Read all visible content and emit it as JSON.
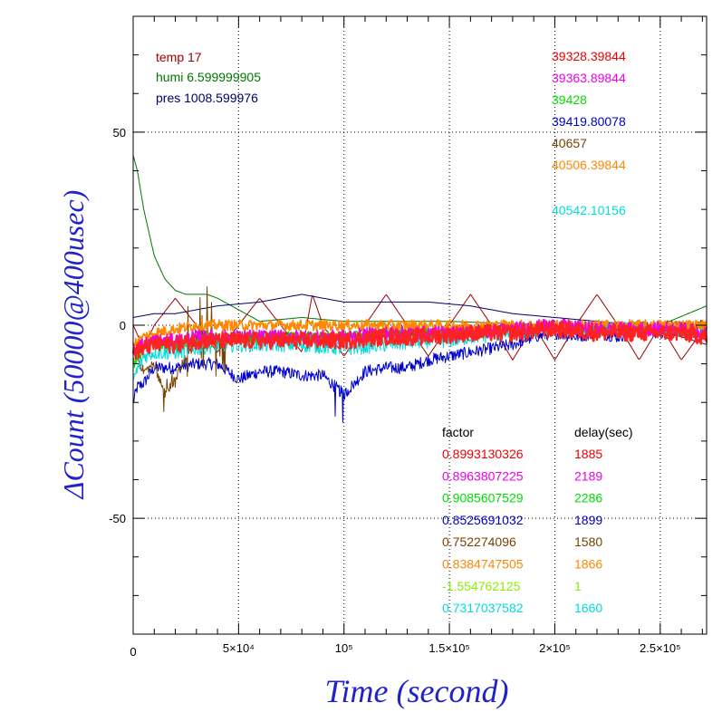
{
  "chart_data": {
    "type": "line",
    "title": "",
    "xlabel": "Time (second)",
    "ylabel": "ΔCount (50000@400usec)",
    "xlim": [
      0,
      272000
    ],
    "ylim": [
      -80,
      80
    ],
    "grid": true,
    "x_ticks": [
      {
        "value": 0,
        "label": "0"
      },
      {
        "value": 50000,
        "label": "5×10⁴"
      },
      {
        "value": 100000,
        "label": "10⁵"
      },
      {
        "value": 150000,
        "label": "1.5×10⁵"
      },
      {
        "value": 200000,
        "label": "2×10⁵"
      },
      {
        "value": 250000,
        "label": "2.5×10⁵"
      }
    ],
    "y_ticks": [
      {
        "value": 50,
        "label": "50"
      },
      {
        "value": 0,
        "label": "0"
      },
      {
        "value": -50,
        "label": "-50"
      }
    ],
    "env_labels": [
      {
        "text": "temp 17",
        "color": "#990000"
      },
      {
        "text": "humi 6.599999905",
        "color": "#007700"
      },
      {
        "text": "pres 1008.599976",
        "color": "#000066"
      }
    ],
    "count_labels": [
      {
        "text": "39328.39844",
        "color": "#ee0000"
      },
      {
        "text": "39363.89844",
        "color": "#ee00ee"
      },
      {
        "text": "39428",
        "color": "#00dd00"
      },
      {
        "text": "39419.80078",
        "color": "#0000cc"
      },
      {
        "text": "40657",
        "color": "#774400"
      },
      {
        "text": "40506.39844",
        "color": "#ff8800"
      },
      {
        "text": "40542.10156",
        "color": "#00dddd"
      }
    ],
    "factor_header": "factor",
    "delay_header": "delay(sec)",
    "factors": [
      {
        "factor": "0.8993130326",
        "delay": "1885",
        "color": "#ee0000"
      },
      {
        "factor": "0.8963807225",
        "delay": "2189",
        "color": "#ee00ee"
      },
      {
        "factor": "0.9085607529",
        "delay": "2286",
        "color": "#00dd00"
      },
      {
        "factor": "0.8525691032",
        "delay": "1899",
        "color": "#0000cc"
      },
      {
        "factor": "0.752274096",
        "delay": "1580",
        "color": "#774400"
      },
      {
        "factor": "0.8384747505",
        "delay": "1866",
        "color": "#ff8800"
      },
      {
        "factor": "-1.554762125",
        "delay": "1",
        "color": "#88ee00"
      },
      {
        "factor": "0.7317037582",
        "delay": "1660",
        "color": "#00dddd"
      }
    ],
    "series": [
      {
        "color": "#990000",
        "kind": "temp",
        "x": [
          0,
          5000,
          10000,
          20000,
          30000,
          40000,
          50000,
          60000,
          70000,
          80000,
          85000,
          90000,
          100000,
          110000,
          120000,
          130000,
          140000,
          150000,
          160000,
          170000,
          180000,
          190000,
          200000,
          210000,
          220000,
          230000,
          240000,
          250000,
          260000,
          272000
        ],
        "y": [
          0,
          -6,
          0,
          7,
          0,
          -7,
          0,
          7,
          0,
          -7,
          8,
          0,
          -8,
          0,
          8,
          0,
          -8,
          0,
          8,
          0,
          -9,
          0,
          -9,
          0,
          8,
          0,
          -9,
          0,
          -9,
          0
        ]
      },
      {
        "color": "#007700",
        "kind": "humi",
        "x": [
          0,
          2000,
          5000,
          10000,
          15000,
          20000,
          25000,
          30000,
          35000,
          40000,
          50000,
          60000,
          80000,
          100000,
          150000,
          200000,
          250000,
          272000
        ],
        "y": [
          44,
          40,
          30,
          18,
          12,
          9,
          8,
          8,
          8,
          7,
          4,
          1,
          2,
          1,
          1,
          0,
          0,
          5
        ]
      },
      {
        "color": "#000066",
        "kind": "pres",
        "x": [
          0,
          10000,
          20000,
          30000,
          40000,
          60000,
          80000,
          90000,
          100000,
          120000,
          140000,
          160000,
          180000,
          200000,
          220000,
          240000,
          260000,
          272000
        ],
        "y": [
          2,
          3,
          3,
          4,
          5,
          6,
          8,
          7,
          6,
          6,
          6,
          5,
          3,
          2,
          1,
          0,
          -3,
          -5
        ]
      },
      {
        "color": "#0000cc",
        "kind": "ch4",
        "x": [
          0,
          2000,
          5000,
          10000,
          20000,
          30000,
          40000,
          50000,
          60000,
          70000,
          80000,
          90000,
          100000,
          110000,
          120000,
          130000,
          140000,
          150000,
          160000,
          170000,
          180000,
          190000,
          200000,
          210000,
          220000,
          230000,
          240000,
          250000,
          260000,
          272000
        ],
        "y": [
          -20,
          -16,
          -15,
          -11,
          -11,
          -10,
          -10,
          -14,
          -12,
          -12,
          -13,
          -13,
          -18,
          -12,
          -11,
          -11,
          -9,
          -8,
          -7,
          -6,
          -5,
          -3,
          -2,
          -3,
          -2,
          -3,
          -1,
          -2,
          -1,
          0
        ]
      },
      {
        "color": "#774400",
        "kind": "ch5",
        "x": [
          0,
          5000,
          10000,
          15000,
          20000,
          25000,
          30000,
          35000,
          40000,
          50000,
          60000,
          80000,
          100000,
          150000,
          200000,
          250000,
          272000
        ],
        "y": [
          -6,
          -12,
          -10,
          -18,
          -14,
          -8,
          -5,
          -2,
          -4,
          -3,
          -3,
          -3,
          -3,
          -2,
          -1,
          0,
          0
        ]
      },
      {
        "color": "#00dddd",
        "kind": "ch8",
        "x": [
          0,
          5000,
          10000,
          20000,
          30000,
          40000,
          50000,
          60000,
          80000,
          100000,
          120000,
          140000,
          150000,
          160000,
          180000,
          200000,
          220000,
          240000,
          260000,
          272000
        ],
        "y": [
          -14,
          -8,
          -7,
          -7,
          -6,
          -5,
          -5,
          -5,
          -5,
          -6,
          -5,
          -4,
          -4,
          -3,
          -2,
          -1,
          -1,
          -1,
          -1,
          -2
        ]
      },
      {
        "color": "#00dd00",
        "kind": "ch3",
        "x": [
          0,
          5000,
          10000,
          20000,
          30000,
          40000,
          50000,
          60000,
          80000,
          100000,
          120000,
          140000,
          160000,
          180000,
          200000,
          220000,
          240000,
          260000,
          272000
        ],
        "y": [
          -10,
          -6,
          -5,
          -5,
          -4,
          -4,
          -3,
          -3,
          -3,
          -3,
          -2,
          -2,
          -2,
          -1,
          -1,
          -1,
          -1,
          -1,
          -1
        ]
      },
      {
        "color": "#ff8800",
        "kind": "ch6",
        "x": [
          0,
          5000,
          10000,
          20000,
          30000,
          40000,
          50000,
          60000,
          80000,
          100000,
          120000,
          140000,
          160000,
          180000,
          200000,
          220000,
          240000,
          260000,
          272000
        ],
        "y": [
          -5,
          -3,
          -2,
          -1,
          0,
          0,
          0,
          0,
          0,
          0,
          0,
          0,
          0,
          0,
          0,
          0,
          0,
          0,
          0
        ]
      },
      {
        "color": "#ee00ee",
        "kind": "ch2",
        "x": [
          0,
          5000,
          10000,
          20000,
          30000,
          40000,
          50000,
          60000,
          80000,
          100000,
          120000,
          140000,
          160000,
          180000,
          200000,
          220000,
          240000,
          260000,
          272000
        ],
        "y": [
          -6,
          -5,
          -4,
          -4,
          -3,
          -3,
          -3,
          -3,
          -3,
          -3,
          -2,
          -2,
          -2,
          -1,
          0,
          -1,
          -1,
          -1,
          -2
        ]
      },
      {
        "color": "#ff2222",
        "kind": "ch1",
        "x": [
          0,
          5000,
          10000,
          20000,
          30000,
          40000,
          50000,
          60000,
          80000,
          100000,
          120000,
          140000,
          160000,
          180000,
          200000,
          220000,
          240000,
          260000,
          272000
        ],
        "y": [
          -7,
          -6,
          -5,
          -5,
          -4,
          -4,
          -4,
          -4,
          -4,
          -4,
          -3,
          -3,
          -2,
          -2,
          -1,
          -2,
          -2,
          -2,
          -3
        ]
      }
    ]
  }
}
